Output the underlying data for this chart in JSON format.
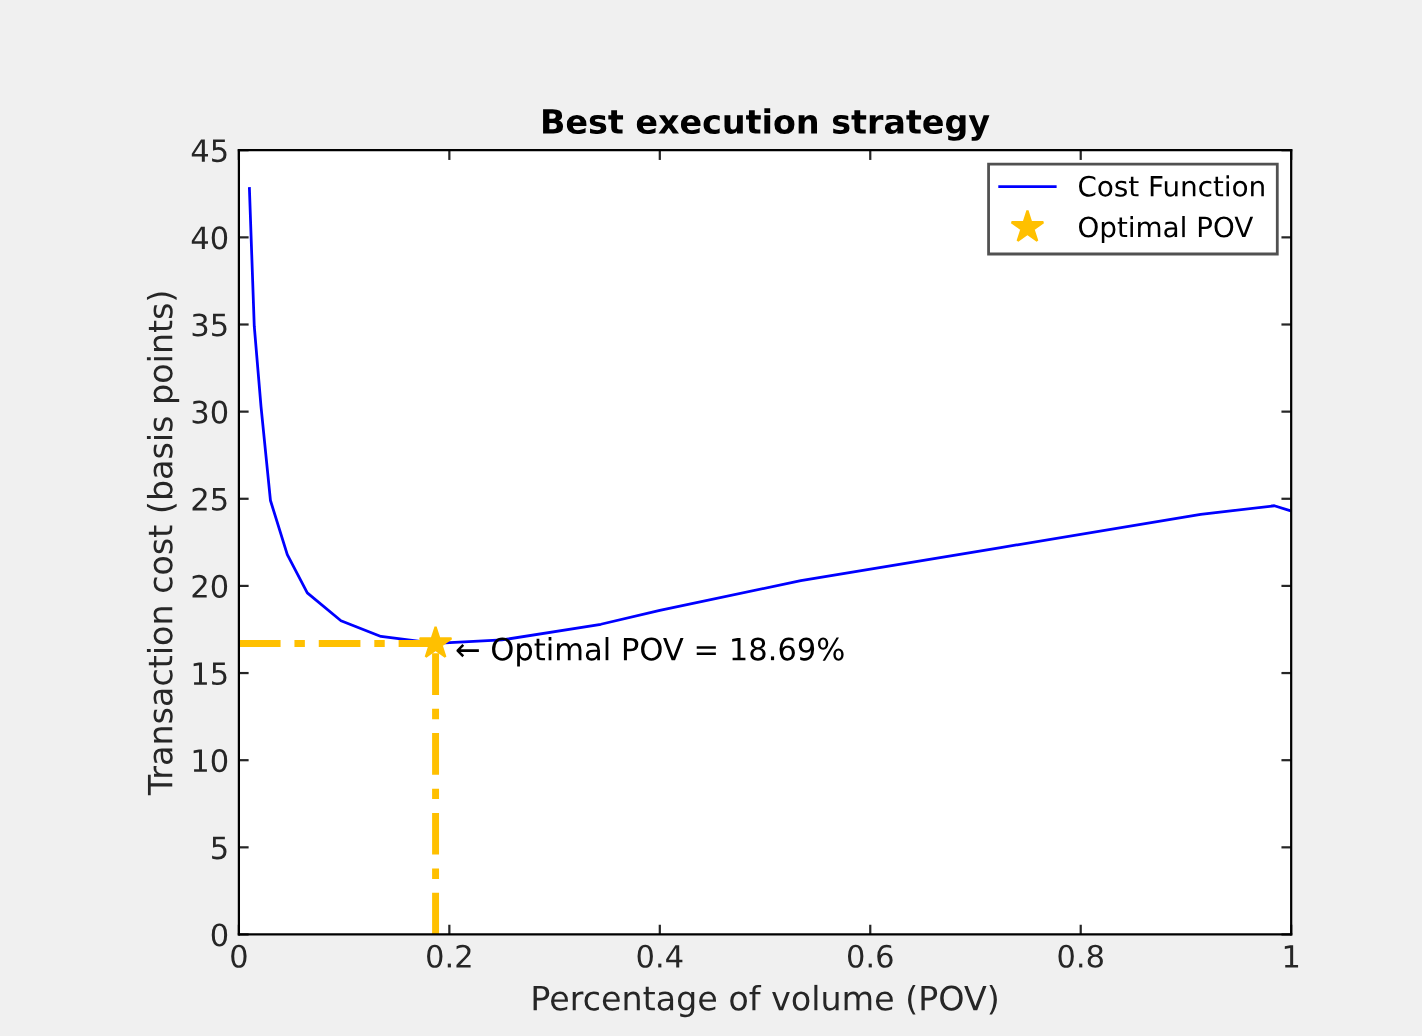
{
  "chart_data": {
    "type": "line",
    "title": "Best execution strategy",
    "xlabel": "Percentage of volume (POV)",
    "ylabel": "Transaction cost (basis points)",
    "xlim": [
      0,
      1
    ],
    "ylim": [
      0,
      45
    ],
    "xticks": [
      0,
      0.2,
      0.4,
      0.6,
      0.8,
      1
    ],
    "yticks": [
      0,
      5,
      10,
      15,
      20,
      25,
      30,
      35,
      40,
      45
    ],
    "grid": false,
    "legend": "top right",
    "series": [
      {
        "name": "Cost Function",
        "color": "#0000ff",
        "line_style": "solid",
        "marker": "none",
        "x": [
          0.01,
          0.0146,
          0.021,
          0.03,
          0.046,
          0.065,
          0.097,
          0.135,
          0.1869,
          0.25,
          0.344,
          0.4,
          0.534,
          0.724,
          0.914,
          0.984,
          1.0
        ],
        "values": [
          42.8,
          34.9,
          30.3,
          24.9,
          21.8,
          19.6,
          18.0,
          17.1,
          16.7,
          16.9,
          17.8,
          18.6,
          20.3,
          22.2,
          24.1,
          24.6,
          24.3
        ]
      },
      {
        "name": "Optimal POV",
        "type": "scatter",
        "color": "#ffc000",
        "marker": "star",
        "x": [
          0.1869
        ],
        "values": [
          16.7
        ]
      },
      {
        "color": "#ffc000",
        "line_style": "dashed",
        "marker": "none",
        "x": [
          0,
          0.1869
        ],
        "values": [
          16.7,
          16.7
        ]
      },
      {
        "color": "#ffc000",
        "line_style": "dashed",
        "marker": "none",
        "x": [
          0.1869,
          0.1869
        ],
        "values": [
          0,
          16.7
        ]
      }
    ],
    "annotations": [
      {
        "text": "← Optimal POV = 18.69%",
        "x": 0.1869,
        "y": 16.7
      }
    ]
  }
}
